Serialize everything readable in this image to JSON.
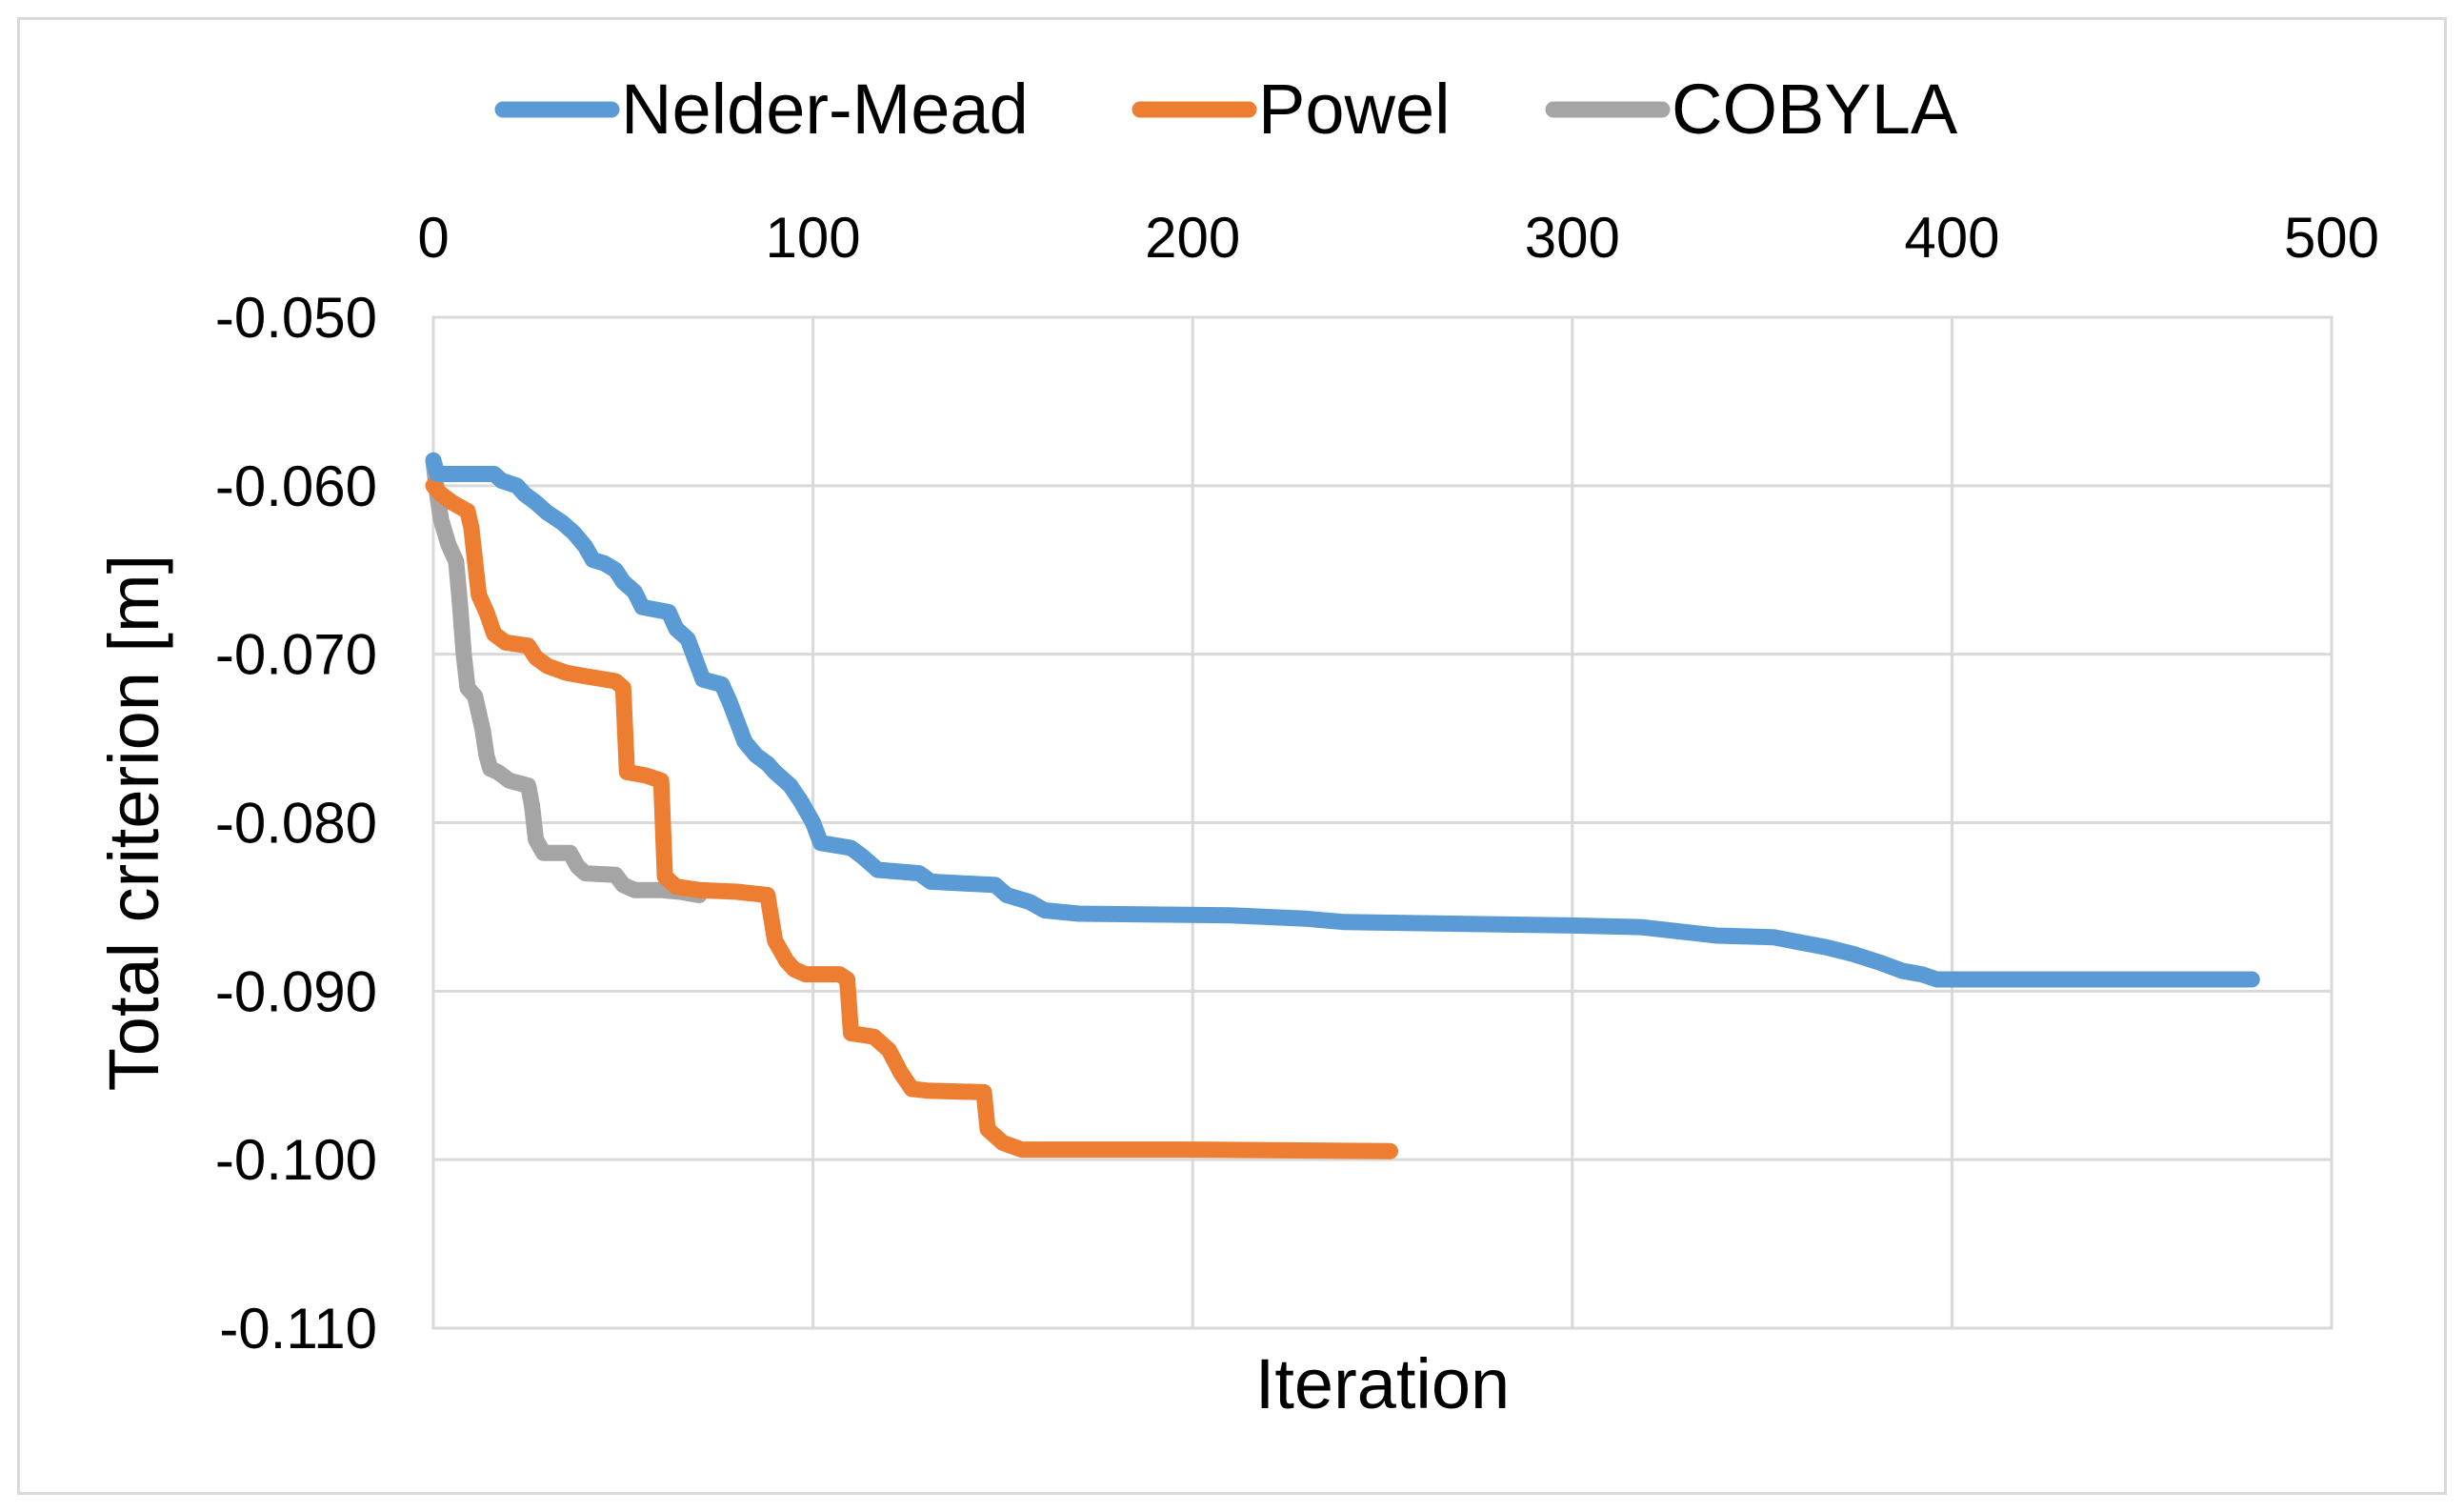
{
  "chart_data": {
    "type": "line",
    "title": "",
    "xlabel": "Iteration",
    "ylabel": "Total criterion [m]",
    "xlim": [
      0,
      500
    ],
    "ylim": [
      -0.11,
      -0.05
    ],
    "x_ticks": [
      0,
      100,
      200,
      300,
      400,
      500
    ],
    "x_tick_labels": [
      "0",
      "100",
      "200",
      "300",
      "400",
      "500"
    ],
    "y_ticks": [
      -0.05,
      -0.06,
      -0.07,
      -0.08,
      -0.09,
      -0.1,
      -0.11
    ],
    "y_tick_labels": [
      "-0.050",
      "-0.060",
      "-0.070",
      "-0.080",
      "-0.090",
      "-0.100",
      "-0.110"
    ],
    "x_axis_position": "top",
    "grid": true,
    "legend_position": "top",
    "series": [
      {
        "name": "Nelder-Mead",
        "color": "#5B9BD5",
        "points": [
          [
            0,
            -0.0585
          ],
          [
            1,
            -0.0593
          ],
          [
            16,
            -0.0593
          ],
          [
            18,
            -0.0597
          ],
          [
            22,
            -0.06
          ],
          [
            24,
            -0.0605
          ],
          [
            27,
            -0.061
          ],
          [
            30,
            -0.0616
          ],
          [
            34,
            -0.0622
          ],
          [
            37,
            -0.0628
          ],
          [
            40,
            -0.0636
          ],
          [
            42,
            -0.0644
          ],
          [
            45,
            -0.0646
          ],
          [
            48,
            -0.065
          ],
          [
            50,
            -0.0657
          ],
          [
            53,
            -0.0663
          ],
          [
            55,
            -0.0672
          ],
          [
            62,
            -0.0675
          ],
          [
            64,
            -0.0685
          ],
          [
            67,
            -0.0691
          ],
          [
            69,
            -0.0703
          ],
          [
            71,
            -0.0715
          ],
          [
            76,
            -0.0718
          ],
          [
            78,
            -0.0728
          ],
          [
            80,
            -0.074
          ],
          [
            82,
            -0.0752
          ],
          [
            85,
            -0.076
          ],
          [
            88,
            -0.0765
          ],
          [
            90,
            -0.077
          ],
          [
            94,
            -0.0778
          ],
          [
            97,
            -0.0788
          ],
          [
            100,
            -0.08
          ],
          [
            102,
            -0.0812
          ],
          [
            110,
            -0.0815
          ],
          [
            113,
            -0.082
          ],
          [
            117,
            -0.0828
          ],
          [
            128,
            -0.083
          ],
          [
            131,
            -0.0835
          ],
          [
            148,
            -0.0837
          ],
          [
            151,
            -0.0843
          ],
          [
            157,
            -0.0847
          ],
          [
            161,
            -0.0852
          ],
          [
            170,
            -0.0854
          ],
          [
            210,
            -0.0855
          ],
          [
            230,
            -0.0857
          ],
          [
            240,
            -0.0859
          ],
          [
            270,
            -0.086
          ],
          [
            300,
            -0.0861
          ],
          [
            318,
            -0.0862
          ],
          [
            330,
            -0.0865
          ],
          [
            338,
            -0.0867
          ],
          [
            353,
            -0.0868
          ],
          [
            360,
            -0.0871
          ],
          [
            367,
            -0.0874
          ],
          [
            374,
            -0.0878
          ],
          [
            381,
            -0.0883
          ],
          [
            387,
            -0.0888
          ],
          [
            392,
            -0.089
          ],
          [
            396,
            -0.0893
          ],
          [
            479,
            -0.0893
          ]
        ]
      },
      {
        "name": "Powel",
        "color": "#ED7D31",
        "points": [
          [
            0,
            -0.06
          ],
          [
            2,
            -0.0605
          ],
          [
            5,
            -0.061
          ],
          [
            9,
            -0.0615
          ],
          [
            10,
            -0.0625
          ],
          [
            11,
            -0.0645
          ],
          [
            12,
            -0.0665
          ],
          [
            14,
            -0.0675
          ],
          [
            16,
            -0.0688
          ],
          [
            19,
            -0.0693
          ],
          [
            25,
            -0.0695
          ],
          [
            27,
            -0.0702
          ],
          [
            30,
            -0.0707
          ],
          [
            35,
            -0.0711
          ],
          [
            40,
            -0.0713
          ],
          [
            48,
            -0.0716
          ],
          [
            50,
            -0.072
          ],
          [
            51,
            -0.077
          ],
          [
            56,
            -0.0772
          ],
          [
            60,
            -0.0775
          ],
          [
            61,
            -0.0832
          ],
          [
            64,
            -0.0838
          ],
          [
            70,
            -0.084
          ],
          [
            80,
            -0.0841
          ],
          [
            88,
            -0.0843
          ],
          [
            90,
            -0.087
          ],
          [
            93,
            -0.0882
          ],
          [
            95,
            -0.0887
          ],
          [
            98,
            -0.089
          ],
          [
            107,
            -0.089
          ],
          [
            109,
            -0.0893
          ],
          [
            110,
            -0.0925
          ],
          [
            116,
            -0.0927
          ],
          [
            120,
            -0.0935
          ],
          [
            123,
            -0.0948
          ],
          [
            126,
            -0.0958
          ],
          [
            130,
            -0.0959
          ],
          [
            145,
            -0.096
          ],
          [
            146,
            -0.0982
          ],
          [
            150,
            -0.099
          ],
          [
            155,
            -0.0994
          ],
          [
            200,
            -0.0994
          ],
          [
            252,
            -0.0995
          ]
        ]
      },
      {
        "name": "COBYLA",
        "color": "#A5A5A5",
        "points": [
          [
            0,
            -0.0585
          ],
          [
            1,
            -0.0605
          ],
          [
            2,
            -0.062
          ],
          [
            4,
            -0.0635
          ],
          [
            6,
            -0.0645
          ],
          [
            7,
            -0.067
          ],
          [
            8,
            -0.07
          ],
          [
            9,
            -0.072
          ],
          [
            11,
            -0.0725
          ],
          [
            12,
            -0.0735
          ],
          [
            13,
            -0.0745
          ],
          [
            14,
            -0.076
          ],
          [
            15,
            -0.0768
          ],
          [
            17,
            -0.077
          ],
          [
            20,
            -0.0775
          ],
          [
            25,
            -0.0778
          ],
          [
            26,
            -0.079
          ],
          [
            27,
            -0.081
          ],
          [
            29,
            -0.0818
          ],
          [
            36,
            -0.0818
          ],
          [
            38,
            -0.0826
          ],
          [
            40,
            -0.083
          ],
          [
            48,
            -0.0831
          ],
          [
            50,
            -0.0837
          ],
          [
            53,
            -0.084
          ],
          [
            60,
            -0.084
          ],
          [
            65,
            -0.0841
          ],
          [
            70,
            -0.0843
          ]
        ]
      }
    ]
  }
}
